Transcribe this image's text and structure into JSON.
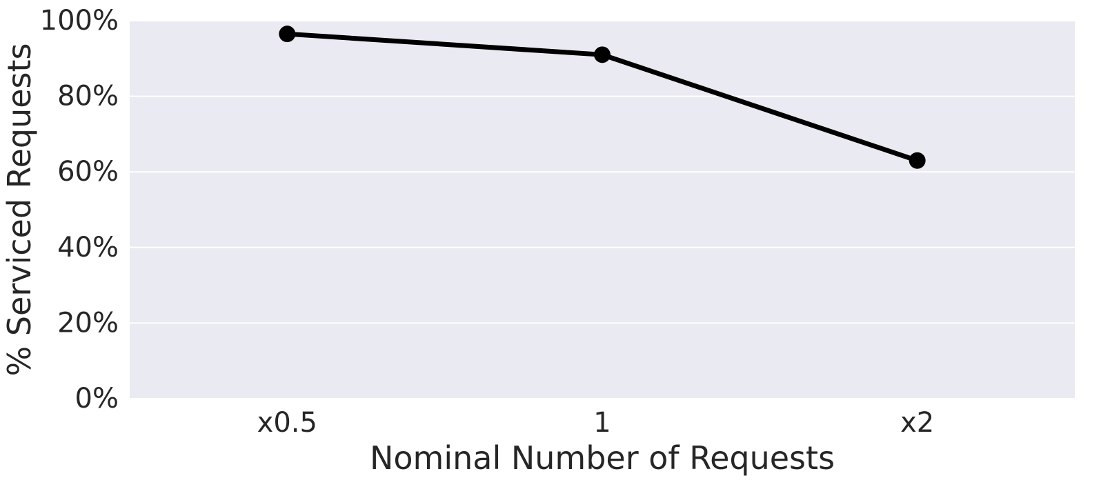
{
  "chart_data": {
    "type": "line",
    "xlabel": "Nominal Number of Requests",
    "ylabel": "% Serviced Requests",
    "categories": [
      "x0.5",
      "1",
      "x2"
    ],
    "series": [
      {
        "values": [
          96.5,
          91,
          63
        ],
        "color": "#000000"
      }
    ],
    "ylim": [
      0,
      100
    ],
    "yticks": [
      0,
      20,
      40,
      60,
      80,
      100
    ],
    "ytick_labels": [
      "0%",
      "20%",
      "40%",
      "60%",
      "80%",
      "100%"
    ],
    "grid": true,
    "grid_axis": "y",
    "plot_background": "#eaeaf2",
    "grid_color": "#ffffff",
    "text_color": "#262626"
  }
}
